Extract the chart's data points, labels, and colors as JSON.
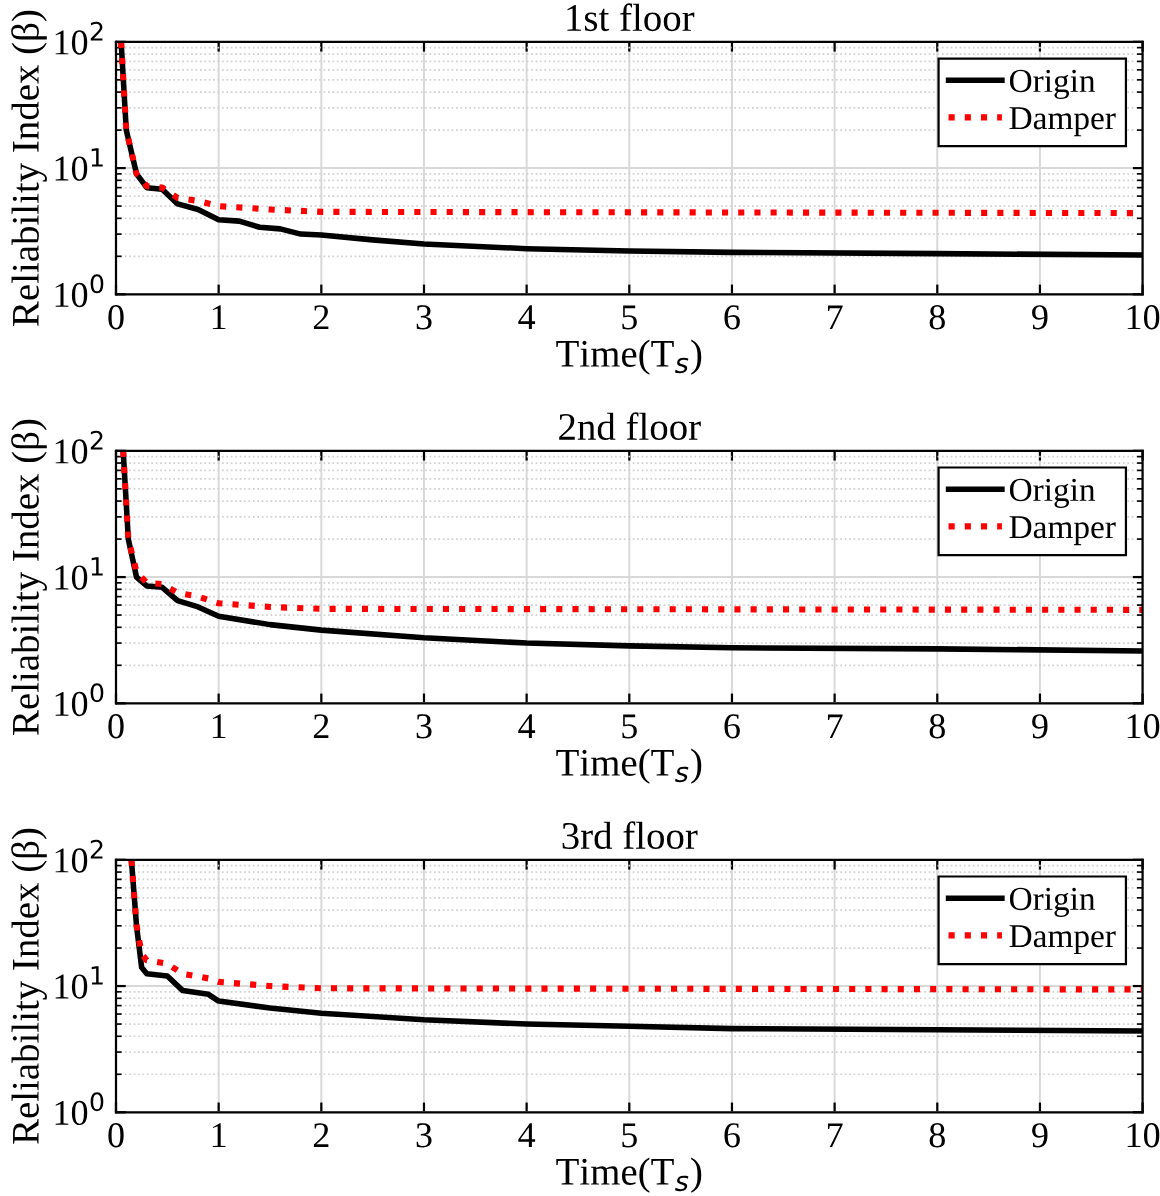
{
  "chart_data": [
    {
      "type": "line",
      "title": "1st floor",
      "xlabel": "Time(T$_{s}$)",
      "ylabel": "Reliability Index (β)",
      "log": "y",
      "grid": true,
      "legend": "top right",
      "xlim": [
        0,
        10
      ],
      "xticks": [
        0,
        1,
        2,
        3,
        4,
        5,
        6,
        7,
        8,
        9,
        10
      ],
      "ylim": [
        1,
        100
      ],
      "yticks": [
        {
          "value": 1,
          "label": "10$^{0}$"
        },
        {
          "value": 10,
          "label": "10$^{1}$"
        },
        {
          "value": 100,
          "label": "10$^{2}$"
        }
      ],
      "series": [
        {
          "name": "Origin",
          "color": "#000000",
          "line_style": "solid",
          "x": [
            0.05,
            0.1,
            0.2,
            0.3,
            0.45,
            0.6,
            0.8,
            1.0,
            1.2,
            1.4,
            1.6,
            1.8,
            2,
            2.5,
            3,
            4,
            5,
            6,
            8,
            10
          ],
          "values": [
            100,
            20,
            9,
            7,
            6.8,
            5.2,
            4.7,
            3.9,
            3.8,
            3.4,
            3.3,
            3.0,
            2.95,
            2.7,
            2.5,
            2.3,
            2.2,
            2.15,
            2.1,
            2.05
          ]
        },
        {
          "name": "Damper",
          "color": "#ff0000",
          "line_style": "dotted",
          "x": [
            0.05,
            0.1,
            0.2,
            0.3,
            0.45,
            0.6,
            0.8,
            1.0,
            1.5,
            2,
            10
          ],
          "values": [
            100,
            20,
            9,
            7.2,
            7.0,
            5.8,
            5.5,
            5.0,
            4.7,
            4.5,
            4.4
          ]
        }
      ]
    },
    {
      "type": "line",
      "title": "2nd floor",
      "xlabel": "Time(T$_{s}$)",
      "ylabel": "Reliability Index (β)",
      "log": "y",
      "grid": true,
      "legend": "top right",
      "xlim": [
        0,
        10
      ],
      "xticks": [
        0,
        1,
        2,
        3,
        4,
        5,
        6,
        7,
        8,
        9,
        10
      ],
      "ylim": [
        1,
        100
      ],
      "yticks": [
        {
          "value": 1,
          "label": "10$^{0}$"
        },
        {
          "value": 10,
          "label": "10$^{1}$"
        },
        {
          "value": 100,
          "label": "10$^{2}$"
        }
      ],
      "series": [
        {
          "name": "Origin",
          "color": "#000000",
          "line_style": "solid",
          "x": [
            0.07,
            0.12,
            0.2,
            0.3,
            0.45,
            0.6,
            0.8,
            1.0,
            1.5,
            2,
            3,
            4,
            5,
            6,
            8,
            10
          ],
          "values": [
            100,
            20,
            10,
            8.5,
            8.3,
            6.5,
            5.8,
            4.9,
            4.2,
            3.8,
            3.3,
            3.0,
            2.85,
            2.75,
            2.7,
            2.6
          ]
        },
        {
          "name": "Damper",
          "color": "#ff0000",
          "line_style": "dotted",
          "x": [
            0.07,
            0.12,
            0.2,
            0.3,
            0.45,
            0.6,
            0.8,
            1.0,
            1.5,
            2,
            10
          ],
          "values": [
            100,
            20,
            11,
            9,
            8.8,
            7.5,
            7.0,
            6.2,
            5.8,
            5.6,
            5.5
          ]
        }
      ]
    },
    {
      "type": "line",
      "title": "3rd floor",
      "xlabel": "Time(T$_{s}$)",
      "ylabel": "Reliability Index (β)",
      "log": "y",
      "grid": true,
      "legend": "top right",
      "xlim": [
        0,
        10
      ],
      "xticks": [
        0,
        1,
        2,
        3,
        4,
        5,
        6,
        7,
        8,
        9,
        10
      ],
      "ylim": [
        1,
        100
      ],
      "yticks": [
        {
          "value": 1,
          "label": "10$^{0}$"
        },
        {
          "value": 10,
          "label": "10$^{1}$"
        },
        {
          "value": 100,
          "label": "10$^{2}$"
        }
      ],
      "series": [
        {
          "name": "Origin",
          "color": "#000000",
          "line_style": "solid",
          "x": [
            0.15,
            0.2,
            0.25,
            0.3,
            0.5,
            0.65,
            0.9,
            1.0,
            1.5,
            2,
            3,
            4,
            5,
            6,
            8,
            10
          ],
          "values": [
            100,
            30,
            14,
            12.5,
            12,
            9.2,
            8.6,
            7.6,
            6.7,
            6.1,
            5.4,
            5.0,
            4.8,
            4.6,
            4.5,
            4.4
          ]
        },
        {
          "name": "Damper",
          "color": "#ff0000",
          "line_style": "dotted",
          "x": [
            0.15,
            0.2,
            0.25,
            0.3,
            0.5,
            0.65,
            0.9,
            1.0,
            1.5,
            2,
            10
          ],
          "values": [
            100,
            30,
            18,
            16,
            15,
            12.5,
            11.5,
            10.8,
            10.0,
            9.6,
            9.4
          ]
        }
      ]
    }
  ]
}
